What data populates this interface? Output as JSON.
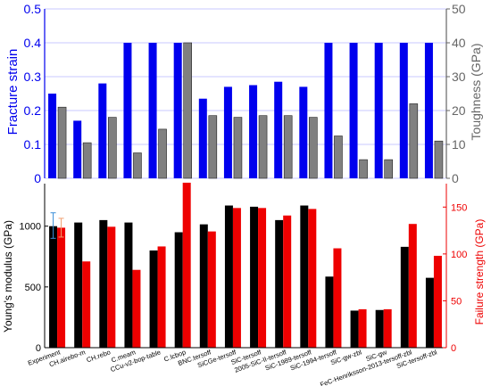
{
  "chart_data": [
    {
      "type": "bar",
      "categories": [
        "Experiment",
        "CH.airebo-m",
        "CH.rebo",
        "C.meam",
        "CCu-v2-bop-table",
        "C.lcbop",
        "BNC.tersoff",
        "SiCGe-tersoff",
        "SiC-tersoff",
        "2005-SiC-II-tersoff",
        "SiC-1989-tersoff",
        "SiC-1994-tersoff",
        "SiC-gw-zbl",
        "SiC-gw",
        "FeC-Henriksson-2013-tersoff-zbl",
        "SiC-tersoff-zbl"
      ],
      "ylabel": "Fracture strain",
      "y2label": "Toughness (GPa)",
      "ylim": [
        0,
        0.5
      ],
      "y2lim": [
        0,
        50
      ],
      "yticks": [
        "0",
        "0.1",
        "0.2",
        "0.3",
        "0.4",
        "0.5"
      ],
      "y2ticks": [
        "0",
        "10",
        "20",
        "30",
        "40",
        "50"
      ],
      "grid": true,
      "colors": {
        "primary": "#0000ee",
        "secondary": "#808080",
        "grid": "#c8c8ff"
      },
      "series": [
        {
          "axis": "left",
          "values": [
            0.25,
            0.17,
            0.28,
            0.4,
            0.4,
            0.4,
            0.235,
            0.27,
            0.275,
            0.285,
            0.27,
            0.4,
            0.4,
            0.4,
            0.4,
            0.4
          ]
        },
        {
          "axis": "right",
          "values": [
            21,
            10.5,
            18,
            7.5,
            14.5,
            40,
            18.5,
            18,
            18.5,
            18.5,
            18,
            12.5,
            5.5,
            5.5,
            22,
            11
          ]
        }
      ]
    },
    {
      "type": "bar",
      "categories": [
        "Experiment",
        "CH.airebo-m",
        "CH.rebo",
        "C.meam",
        "CCu-v2-bop-table",
        "C.lcbop",
        "BNC.tersoff",
        "SiCGe-tersoff",
        "SiC-tersoff",
        "2005-SiC-II-tersoff",
        "SiC-1989-tersoff",
        "SiC-1994-tersoff",
        "SiC-gw-zbl",
        "SiC-gw",
        "FeC-Henriksson-2013-tersoff-zbl",
        "SiC-tersoff-zbl"
      ],
      "ylabel": "Young's modulus (GPa)",
      "y2label": "Failure strength (GPa)",
      "ylim": [
        0,
        1350
      ],
      "y2lim": [
        0,
        175
      ],
      "yticks": [
        "0",
        "500",
        "1000"
      ],
      "y2ticks": [
        "0",
        "50",
        "100",
        "150"
      ],
      "colors": {
        "primary": "#000000",
        "secondary": "#ee0000",
        "errorbar_left": "#3a8fd9",
        "errorbar_right": "#f0a070"
      },
      "errorbars": [
        {
          "series": 0,
          "index": 0,
          "low": 900,
          "high": 1110
        },
        {
          "series": 1,
          "index": 0,
          "low": 118,
          "high": 138
        }
      ],
      "series": [
        {
          "axis": "left",
          "values": [
            1000,
            1030,
            1050,
            1030,
            800,
            950,
            1015,
            1170,
            1160,
            1050,
            1170,
            585,
            305,
            310,
            830,
            575
          ]
        },
        {
          "axis": "right",
          "values": [
            128,
            92,
            129,
            83,
            108,
            176,
            124,
            149,
            149,
            141,
            148,
            106,
            41,
            41,
            132,
            98
          ]
        }
      ]
    }
  ]
}
